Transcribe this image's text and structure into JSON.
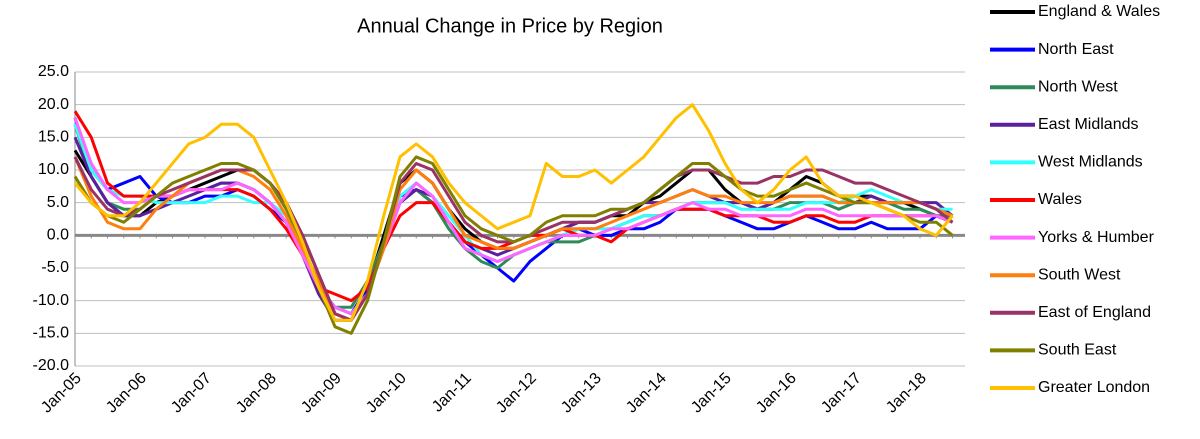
{
  "chart_data": {
    "type": "line",
    "title": "Annual Change in Price by Region",
    "categories": [
      "Jan-05",
      null,
      null,
      null,
      "Jan-06",
      null,
      null,
      null,
      "Jan-07",
      null,
      null,
      null,
      "Jan-08",
      null,
      null,
      null,
      "Jan-09",
      null,
      null,
      null,
      "Jan-10",
      null,
      null,
      null,
      "Jan-11",
      null,
      null,
      null,
      "Jan-12",
      null,
      null,
      null,
      "Jan-13",
      null,
      null,
      null,
      "Jan-14",
      null,
      null,
      null,
      "Jan-15",
      null,
      null,
      null,
      "Jan-16",
      null,
      null,
      null,
      "Jan-17",
      null,
      null,
      null,
      "Jan-18",
      null,
      null
    ],
    "ylim": [
      -20,
      25
    ],
    "yticks": [
      {
        "value": -20,
        "label": "-20.0"
      },
      {
        "value": -15,
        "label": "-15.0"
      },
      {
        "value": -10,
        "label": "-10.0"
      },
      {
        "value": -5,
        "label": "-5.0"
      },
      {
        "value": 0,
        "label": "0.0"
      },
      {
        "value": 5,
        "label": "5.0"
      },
      {
        "value": 10,
        "label": "10.0"
      },
      {
        "value": 15,
        "label": "15.0"
      },
      {
        "value": 20,
        "label": "20.0"
      },
      {
        "value": 25,
        "label": "25.0"
      }
    ],
    "grid": true,
    "legend": "right",
    "series": [
      {
        "name": "England & Wales",
        "color": "#000000",
        "values": [
          13,
          9,
          5,
          3,
          3,
          5,
          6,
          7,
          8,
          9,
          10,
          10,
          8,
          5,
          0,
          -6,
          -12,
          -13,
          -8,
          0,
          8,
          10,
          8,
          4,
          1,
          -1,
          -2,
          -2,
          -1,
          0,
          1,
          2,
          2,
          3,
          3,
          5,
          6,
          8,
          10,
          10,
          7,
          5,
          4,
          5,
          7,
          9,
          8,
          6,
          6,
          6,
          5,
          5,
          4,
          3,
          2
        ]
      },
      {
        "name": "North East",
        "color": "#0000ff",
        "values": [
          18,
          10,
          7,
          8,
          9,
          6,
          5,
          5,
          6,
          6,
          7,
          6,
          4,
          2,
          -3,
          -8,
          -11,
          -12,
          -8,
          -1,
          6,
          7,
          5,
          2,
          -1,
          -3,
          -5,
          -7,
          -4,
          -2,
          0,
          1,
          0,
          0,
          1,
          1,
          2,
          4,
          4,
          4,
          3,
          2,
          1,
          1,
          2,
          3,
          2,
          1,
          1,
          2,
          1,
          1,
          1,
          3,
          2
        ]
      },
      {
        "name": "North West",
        "color": "#2e8b57",
        "values": [
          17,
          9,
          5,
          4,
          4,
          6,
          6,
          7,
          7,
          8,
          8,
          7,
          5,
          2,
          -3,
          -8,
          -11,
          -11,
          -7,
          -1,
          5,
          7,
          5,
          1,
          -2,
          -4,
          -5,
          -3,
          -2,
          -1,
          -1,
          -1,
          0,
          1,
          2,
          3,
          3,
          4,
          5,
          5,
          5,
          5,
          4,
          4,
          5,
          5,
          5,
          4,
          5,
          5,
          5,
          4,
          4,
          3,
          3
        ]
      },
      {
        "name": "East Midlands",
        "color": "#5b1fa0",
        "values": [
          15,
          9,
          5,
          3,
          3,
          4,
          5,
          6,
          7,
          8,
          8,
          7,
          5,
          2,
          -3,
          -9,
          -13,
          -13,
          -9,
          -2,
          5,
          7,
          6,
          2,
          -1,
          -2,
          -3,
          -2,
          -1,
          0,
          1,
          2,
          2,
          3,
          4,
          5,
          5,
          6,
          7,
          6,
          5,
          5,
          4,
          5,
          6,
          6,
          6,
          5,
          5,
          6,
          5,
          5,
          5,
          5,
          3
        ]
      },
      {
        "name": "West Midlands",
        "color": "#33ffff",
        "values": [
          17,
          10,
          7,
          6,
          6,
          5,
          5,
          5,
          5,
          6,
          6,
          5,
          5,
          3,
          -2,
          -8,
          -11,
          -12,
          -9,
          -2,
          6,
          8,
          6,
          3,
          0,
          -3,
          -4,
          -3,
          -2,
          -1,
          0,
          1,
          1,
          1,
          2,
          3,
          3,
          4,
          5,
          5,
          5,
          4,
          4,
          4,
          4,
          5,
          5,
          5,
          6,
          7,
          6,
          5,
          5,
          4,
          4
        ]
      },
      {
        "name": "Wales",
        "color": "#ff0000",
        "values": [
          19,
          15,
          8,
          6,
          6,
          6,
          6,
          7,
          7,
          7,
          7,
          6,
          4,
          1,
          -3,
          -8,
          -9,
          -10,
          -8,
          -2,
          3,
          5,
          5,
          2,
          -1,
          -2,
          -2,
          -1,
          0,
          0,
          1,
          0,
          0,
          -1,
          1,
          2,
          3,
          4,
          4,
          4,
          3,
          3,
          3,
          2,
          2,
          3,
          3,
          2,
          2,
          3,
          3,
          3,
          3,
          3,
          2
        ]
      },
      {
        "name": "Yorks & Humber",
        "color": "#ff66ff",
        "values": [
          18,
          11,
          7,
          5,
          5,
          6,
          6,
          7,
          7,
          7,
          8,
          7,
          5,
          2,
          -3,
          -8,
          -11,
          -12,
          -9,
          -2,
          5,
          8,
          6,
          2,
          -2,
          -3,
          -4,
          -3,
          -2,
          -1,
          0,
          0,
          0,
          1,
          1,
          2,
          3,
          4,
          5,
          4,
          4,
          3,
          3,
          3,
          3,
          4,
          4,
          3,
          3,
          3,
          3,
          3,
          3,
          3,
          2
        ]
      },
      {
        "name": "South West",
        "color": "#ff7f0e",
        "values": [
          12,
          6,
          2,
          1,
          1,
          4,
          6,
          8,
          9,
          10,
          10,
          9,
          7,
          3,
          -2,
          -7,
          -12,
          -13,
          -9,
          -2,
          7,
          10,
          8,
          4,
          0,
          -1,
          -2,
          -2,
          -1,
          0,
          1,
          1,
          1,
          2,
          3,
          4,
          5,
          6,
          7,
          6,
          6,
          5,
          5,
          5,
          6,
          6,
          6,
          5,
          5,
          5,
          5,
          5,
          5,
          4,
          3
        ]
      },
      {
        "name": "East of England",
        "color": "#993366",
        "values": [
          12,
          7,
          4,
          3,
          4,
          6,
          7,
          8,
          9,
          10,
          10,
          10,
          8,
          5,
          0,
          -6,
          -12,
          -13,
          -9,
          -1,
          8,
          11,
          10,
          6,
          2,
          0,
          -1,
          -1,
          0,
          1,
          2,
          2,
          2,
          3,
          4,
          5,
          7,
          9,
          10,
          10,
          9,
          8,
          8,
          9,
          9,
          10,
          10,
          9,
          8,
          8,
          7,
          6,
          5,
          4,
          2
        ]
      },
      {
        "name": "South East",
        "color": "#808000",
        "values": [
          9,
          5,
          3,
          2,
          4,
          6,
          8,
          9,
          10,
          11,
          11,
          10,
          8,
          4,
          -1,
          -8,
          -14,
          -15,
          -10,
          -1,
          9,
          12,
          11,
          7,
          3,
          1,
          0,
          -1,
          0,
          2,
          3,
          3,
          3,
          4,
          4,
          5,
          7,
          9,
          11,
          11,
          9,
          7,
          6,
          6,
          7,
          8,
          7,
          6,
          5,
          5,
          4,
          3,
          2,
          2,
          0
        ]
      },
      {
        "name": "Greater London",
        "color": "#ffc000",
        "values": [
          8,
          5,
          3,
          3,
          5,
          8,
          11,
          14,
          15,
          17,
          17,
          15,
          10,
          5,
          -1,
          -8,
          -13,
          -13,
          -7,
          3,
          12,
          14,
          12,
          8,
          5,
          3,
          1,
          2,
          3,
          11,
          9,
          9,
          10,
          8,
          10,
          12,
          15,
          18,
          20,
          16,
          11,
          7,
          5,
          7,
          10,
          12,
          8,
          6,
          6,
          5,
          4,
          3,
          1,
          0,
          3
        ]
      }
    ]
  }
}
